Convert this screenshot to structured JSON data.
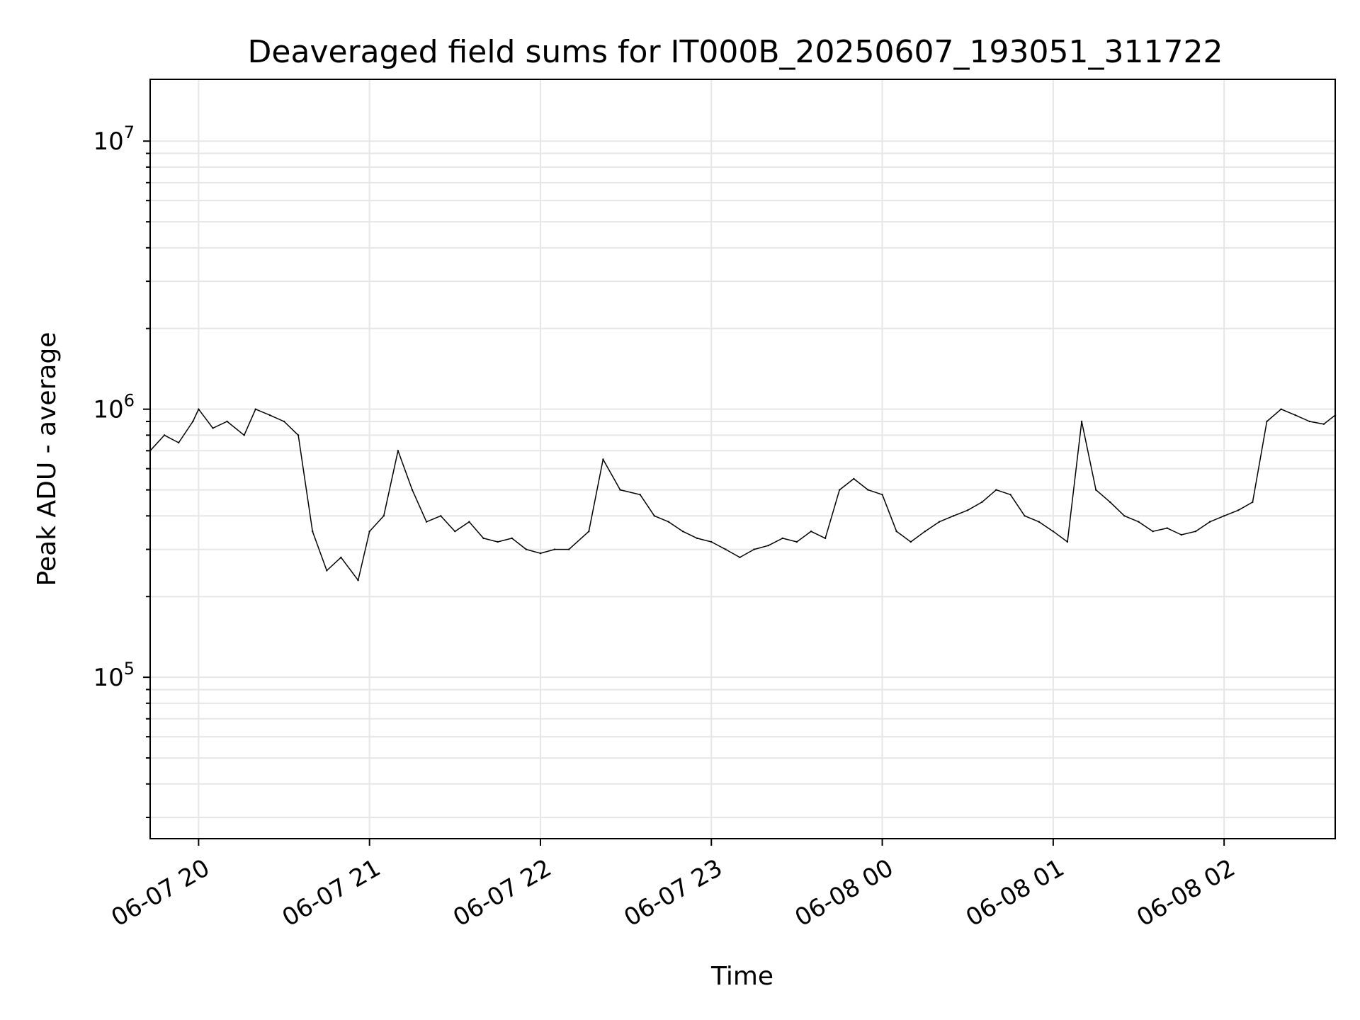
{
  "chart_data": {
    "type": "line",
    "title": "Deaveraged field sums for IT000B_20250607_193051_311722",
    "xlabel": "Time",
    "ylabel": "Peak ADU - average",
    "yscale": "log",
    "ylim": [
      25000,
      17000000
    ],
    "xlim": [
      "2025-06-07 19:43",
      "2025-06-08 02:39"
    ],
    "grid": true,
    "line_color": "#000000",
    "x_ticks": [
      {
        "value": "2025-06-07 20:00",
        "label": "06-07 20"
      },
      {
        "value": "2025-06-07 21:00",
        "label": "06-07 21"
      },
      {
        "value": "2025-06-07 22:00",
        "label": "06-07 22"
      },
      {
        "value": "2025-06-07 23:00",
        "label": "06-07 23"
      },
      {
        "value": "2025-06-08 00:00",
        "label": "06-08 00"
      },
      {
        "value": "2025-06-08 01:00",
        "label": "06-08 01"
      },
      {
        "value": "2025-06-08 02:00",
        "label": "06-08 02"
      }
    ],
    "y_ticks": [
      {
        "value": 100000,
        "base": "10",
        "exp": "5"
      },
      {
        "value": 1000000,
        "base": "10",
        "exp": "6"
      },
      {
        "value": 10000000,
        "base": "10",
        "exp": "7"
      }
    ],
    "series": [
      {
        "x": [
          "2025-06-07 19:43",
          "2025-06-07 19:48",
          "2025-06-07 19:53",
          "2025-06-07 19:58",
          "2025-06-07 20:00",
          "2025-06-07 20:05",
          "2025-06-07 20:10",
          "2025-06-07 20:16",
          "2025-06-07 20:20",
          "2025-06-07 20:25",
          "2025-06-07 20:30",
          "2025-06-07 20:35",
          "2025-06-07 20:40",
          "2025-06-07 20:45",
          "2025-06-07 20:50",
          "2025-06-07 20:56",
          "2025-06-07 21:00",
          "2025-06-07 21:05",
          "2025-06-07 21:10",
          "2025-06-07 21:15",
          "2025-06-07 21:20",
          "2025-06-07 21:25",
          "2025-06-07 21:30",
          "2025-06-07 21:35",
          "2025-06-07 21:40",
          "2025-06-07 21:45",
          "2025-06-07 21:50",
          "2025-06-07 21:55",
          "2025-06-07 22:00",
          "2025-06-07 22:05",
          "2025-06-07 22:10",
          "2025-06-07 22:17",
          "2025-06-07 22:22",
          "2025-06-07 22:28",
          "2025-06-07 22:35",
          "2025-06-07 22:40",
          "2025-06-07 22:45",
          "2025-06-07 22:50",
          "2025-06-07 22:55",
          "2025-06-07 23:00",
          "2025-06-07 23:05",
          "2025-06-07 23:10",
          "2025-06-07 23:15",
          "2025-06-07 23:20",
          "2025-06-07 23:25",
          "2025-06-07 23:30",
          "2025-06-07 23:35",
          "2025-06-07 23:40",
          "2025-06-07 23:45",
          "2025-06-07 23:50",
          "2025-06-07 23:55",
          "2025-06-08 00:00",
          "2025-06-08 00:05",
          "2025-06-08 00:10",
          "2025-06-08 00:15",
          "2025-06-08 00:20",
          "2025-06-08 00:25",
          "2025-06-08 00:30",
          "2025-06-08 00:35",
          "2025-06-08 00:40",
          "2025-06-08 00:45",
          "2025-06-08 00:50",
          "2025-06-08 00:55",
          "2025-06-08 01:00",
          "2025-06-08 01:05",
          "2025-06-08 01:10",
          "2025-06-08 01:15",
          "2025-06-08 01:20",
          "2025-06-08 01:25",
          "2025-06-08 01:30",
          "2025-06-08 01:35",
          "2025-06-08 01:40",
          "2025-06-08 01:45",
          "2025-06-08 01:50",
          "2025-06-08 01:55",
          "2025-06-08 02:00",
          "2025-06-08 02:05",
          "2025-06-08 02:10",
          "2025-06-08 02:15",
          "2025-06-08 02:20",
          "2025-06-08 02:25",
          "2025-06-08 02:30",
          "2025-06-08 02:35",
          "2025-06-08 02:39"
        ],
        "y": [
          700000,
          800000,
          750000,
          900000,
          1000000,
          850000,
          900000,
          800000,
          1000000,
          950000,
          900000,
          800000,
          350000,
          250000,
          280000,
          230000,
          350000,
          400000,
          700000,
          500000,
          380000,
          400000,
          350000,
          380000,
          330000,
          320000,
          330000,
          300000,
          290000,
          300000,
          300000,
          350000,
          650000,
          500000,
          480000,
          400000,
          380000,
          350000,
          330000,
          320000,
          300000,
          280000,
          300000,
          310000,
          330000,
          320000,
          350000,
          330000,
          500000,
          550000,
          500000,
          480000,
          350000,
          320000,
          350000,
          380000,
          400000,
          420000,
          450000,
          500000,
          480000,
          400000,
          380000,
          350000,
          320000,
          900000,
          500000,
          450000,
          400000,
          380000,
          350000,
          360000,
          340000,
          350000,
          380000,
          400000,
          420000,
          450000,
          900000,
          1000000,
          950000,
          900000,
          880000,
          950000
        ]
      }
    ]
  }
}
